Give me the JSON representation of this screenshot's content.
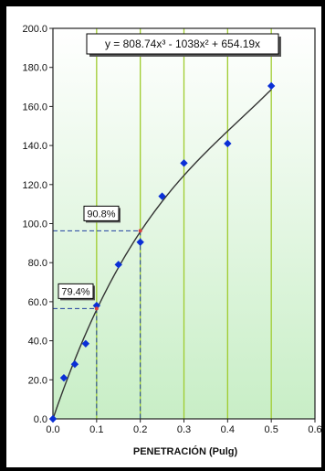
{
  "chart_data": {
    "type": "scatter",
    "xlabel": "PENETRACIÓN (Pulg)",
    "ylabel": "",
    "xlim": [
      0,
      0.6
    ],
    "ylim": [
      0,
      200
    ],
    "x_ticks": [
      0.0,
      0.1,
      0.2,
      0.3,
      0.4,
      0.5,
      0.6
    ],
    "y_ticks": [
      0.0,
      20.0,
      40.0,
      60.0,
      80.0,
      100.0,
      120.0,
      140.0,
      160.0,
      180.0,
      200.0
    ],
    "x_tick_labels": [
      "0.0",
      "0.1",
      "0.2",
      "0.3",
      "0.4",
      "0.5",
      "0.6"
    ],
    "y_tick_labels": [
      "0.0",
      "20.0",
      "40.0",
      "60.0",
      "80.0",
      "100.0",
      "120.0",
      "140.0",
      "160.0",
      "180.0",
      "200.0"
    ],
    "grid": "vertical",
    "points": {
      "x": [
        0.0,
        0.025,
        0.05,
        0.075,
        0.1,
        0.15,
        0.2,
        0.25,
        0.3,
        0.4,
        0.5
      ],
      "y": [
        0.0,
        21.0,
        28.0,
        38.5,
        58.0,
        79.0,
        90.5,
        114.0,
        131.0,
        141.0,
        170.5
      ]
    },
    "trendline": {
      "equation": "y = 808.74x³ - 1038x² + 654.19x",
      "coefficients": {
        "a3": 808.74,
        "a2": -1038,
        "a1": 654.19,
        "a0": 0
      }
    },
    "annotations": [
      {
        "label": "79.4%",
        "x": 0.1,
        "y": 56.5
      },
      {
        "label": "90.8%",
        "x": 0.2,
        "y": 96.3
      }
    ],
    "colors": {
      "marker": "#0a2fd6",
      "curve": "#333333",
      "guide": "#1f3fa0",
      "grid": "#9fcc2e",
      "background_top": "#ffffff",
      "background_bottom": "#c8eec6",
      "frame": "#000000"
    }
  }
}
